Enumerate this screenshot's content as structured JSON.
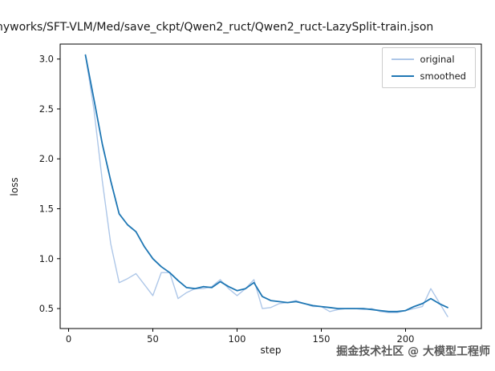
{
  "title": "nyworks/SFT-VLM/Med/save_ckpt/Qwen2_ruct/Qwen2_ruct-LazySplit-train.json",
  "watermark": "掘金技术社区 @ 大模型工程师",
  "chart_data": {
    "type": "line",
    "title": "nyworks/SFT-VLM/Med/save_ckpt/Qwen2_ruct/Qwen2_ruct-LazySplit-train.json",
    "xlabel": "step",
    "ylabel": "loss",
    "xlim": [
      -5,
      245
    ],
    "ylim": [
      0.3,
      3.15
    ],
    "xticks": [
      0,
      50,
      100,
      150,
      200
    ],
    "yticks": [
      0.5,
      1.0,
      1.5,
      2.0,
      2.5,
      3.0
    ],
    "grid": false,
    "legend_position": "upper right",
    "x": [
      10,
      15,
      20,
      25,
      30,
      35,
      40,
      45,
      50,
      55,
      60,
      65,
      70,
      75,
      80,
      85,
      90,
      95,
      100,
      105,
      110,
      115,
      120,
      125,
      130,
      135,
      140,
      145,
      150,
      155,
      160,
      165,
      170,
      175,
      180,
      185,
      190,
      195,
      200,
      205,
      210,
      215,
      220,
      225
    ],
    "series": [
      {
        "name": "original",
        "color": "#aec7e8",
        "values": [
          3.04,
          2.5,
          1.78,
          1.15,
          0.76,
          0.8,
          0.85,
          0.74,
          0.63,
          0.86,
          0.86,
          0.6,
          0.66,
          0.7,
          0.7,
          0.72,
          0.79,
          0.7,
          0.63,
          0.7,
          0.79,
          0.5,
          0.51,
          0.55,
          0.56,
          0.58,
          0.55,
          0.52,
          0.52,
          0.47,
          0.49,
          0.5,
          0.5,
          0.49,
          0.5,
          0.47,
          0.46,
          0.46,
          0.48,
          0.5,
          0.52,
          0.7,
          0.56,
          0.42
        ]
      },
      {
        "name": "smoothed",
        "color": "#1f77b4",
        "values": [
          3.04,
          2.6,
          2.15,
          1.78,
          1.45,
          1.34,
          1.27,
          1.12,
          1.0,
          0.92,
          0.86,
          0.78,
          0.71,
          0.7,
          0.72,
          0.71,
          0.77,
          0.72,
          0.68,
          0.7,
          0.76,
          0.62,
          0.58,
          0.57,
          0.56,
          0.57,
          0.55,
          0.53,
          0.52,
          0.51,
          0.5,
          0.5,
          0.5,
          0.5,
          0.49,
          0.48,
          0.47,
          0.47,
          0.48,
          0.52,
          0.55,
          0.6,
          0.55,
          0.51
        ]
      }
    ]
  }
}
